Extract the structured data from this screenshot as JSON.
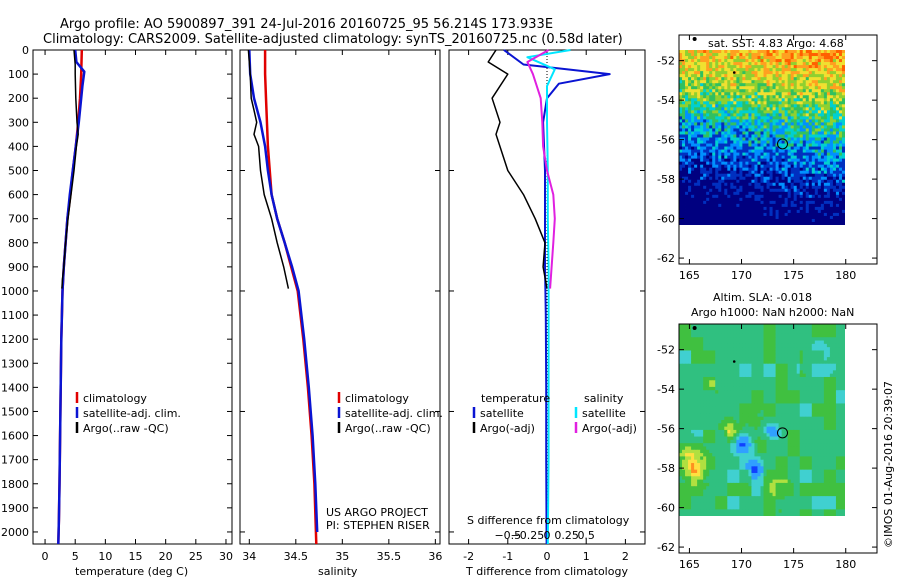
{
  "title": {
    "line1": "Argo profile: AO 5900897_391 24-Jul-2016 20160725_95 56.214S 173.933E",
    "line2": "Climatology: CARS2009. Satellite-adjusted climatology: synTS_20160725.nc (0.58d later)"
  },
  "colors": {
    "climatology": "#e00000",
    "satellite": "#0a14d2",
    "argo": "#000000",
    "satellite_salinity": "#00e6ff",
    "argo_salinity": "#e020e0"
  },
  "legend_profile": {
    "climatology": "climatology",
    "satellite": "satellite-adj. clim.",
    "argo": "Argo(..raw -QC)"
  },
  "legend_diff": {
    "temperature_header": "temperature",
    "salinity_header": "salinity",
    "satellite": "satellite",
    "argo": "Argo(-adj)"
  },
  "project_note": {
    "line1": "US ARGO PROJECT",
    "line2": "PI: STEPHEN RISER"
  },
  "map_sst": {
    "title": "sat. SST: 4.83 Argo: 4.68",
    "xticks": [
      "165",
      "170",
      "175",
      "180"
    ],
    "yticks": [
      "-52",
      "-54",
      "-56",
      "-58",
      "-60",
      "-62"
    ]
  },
  "map_sla": {
    "title_line1": "Altim. SLA: -0.018",
    "title_line2": "Argo h1000: NaN h2000: NaN",
    "xticks": [
      "165",
      "170",
      "175",
      "180"
    ],
    "yticks": [
      "-52",
      "-54",
      "-56",
      "-58",
      "-60",
      "-62"
    ]
  },
  "credit": "©IMOS 01-Aug-2016 20:39:07",
  "chart_data": [
    {
      "type": "line",
      "name": "temperature-profile",
      "xlabel": "temperature (deg C)",
      "ylabel": "",
      "xlim": [
        -2,
        31
      ],
      "ylim": [
        2050,
        0
      ],
      "xticks": [
        0,
        5,
        10,
        15,
        20,
        25,
        30
      ],
      "yticks": [
        0,
        100,
        200,
        300,
        400,
        500,
        600,
        700,
        800,
        900,
        1000,
        1100,
        1200,
        1300,
        1400,
        1500,
        1600,
        1700,
        1800,
        1900,
        2000
      ],
      "series": [
        {
          "name": "climatology",
          "x": [
            6.1,
            6.0,
            5.8,
            5.5,
            5.1,
            4.6,
            4.2,
            3.7,
            3.4,
            3.1,
            2.9,
            2.7,
            2.6,
            2.5,
            2.4,
            2.3,
            2.2
          ],
          "y": [
            0,
            100,
            200,
            300,
            400,
            500,
            600,
            700,
            800,
            900,
            1000,
            1200,
            1400,
            1600,
            1800,
            1950,
            2050
          ]
        },
        {
          "name": "satellite-adj. clim.",
          "x": [
            5.0,
            5.2,
            6.5,
            6.2,
            5.6,
            5.1,
            4.6,
            4.1,
            3.7,
            3.4,
            3.1,
            2.9,
            2.7,
            2.6,
            2.5,
            2.4,
            2.3,
            2.2
          ],
          "y": [
            0,
            50,
            90,
            150,
            300,
            400,
            500,
            600,
            700,
            800,
            900,
            1000,
            1200,
            1400,
            1600,
            1800,
            1950,
            2050
          ]
        },
        {
          "name": "Argo(..raw -QC)",
          "x": [
            4.8,
            5.0,
            5.0,
            5.1,
            5.3,
            5.5,
            5.2,
            4.8,
            4.3,
            3.8,
            3.4,
            3.1,
            2.9,
            2.8
          ],
          "y": [
            0,
            60,
            100,
            200,
            300,
            350,
            400,
            500,
            600,
            700,
            800,
            900,
            950,
            990
          ]
        }
      ]
    },
    {
      "type": "line",
      "name": "salinity-profile",
      "xlabel": "salinity",
      "ylabel": "",
      "xlim": [
        33.9,
        36.05
      ],
      "ylim": [
        2050,
        0
      ],
      "xticks": [
        34,
        34.5,
        35,
        35.5,
        36
      ],
      "xticklabels": [
        "34",
        "34.5",
        "35",
        "35.5",
        "36"
      ],
      "yticks": [
        0,
        500,
        1000,
        1500,
        2000
      ],
      "series": [
        {
          "name": "climatology",
          "x": [
            34.17,
            34.17,
            34.18,
            34.2,
            34.24,
            34.3,
            34.38,
            34.45,
            34.52,
            34.58,
            34.63,
            34.67,
            34.7,
            34.72
          ],
          "y": [
            0,
            100,
            200,
            400,
            600,
            700,
            800,
            900,
            1000,
            1200,
            1400,
            1600,
            1800,
            2050
          ]
        },
        {
          "name": "satellite-adj. clim.",
          "x": [
            34.0,
            34.01,
            34.05,
            34.12,
            34.17,
            34.2,
            34.24,
            34.3,
            34.38,
            34.46,
            34.53,
            34.59,
            34.64,
            34.68,
            34.71,
            34.73
          ],
          "y": [
            0,
            100,
            200,
            300,
            400,
            500,
            600,
            700,
            800,
            900,
            1000,
            1200,
            1400,
            1600,
            1800,
            2000
          ]
        },
        {
          "name": "Argo(..raw -QC)",
          "x": [
            33.99,
            34.01,
            34.02,
            34.05,
            34.08,
            34.05,
            34.1,
            34.12,
            34.16,
            34.2,
            34.24,
            34.3,
            34.37,
            34.42
          ],
          "y": [
            0,
            100,
            200,
            250,
            300,
            350,
            400,
            500,
            600,
            650,
            700,
            800,
            900,
            990
          ]
        }
      ]
    },
    {
      "type": "line",
      "name": "difference-from-climatology",
      "xlabel": "T difference from climatology",
      "xlabel2": "S difference from climatology",
      "ylabel": "",
      "xlim": [
        -2.5,
        2.5
      ],
      "ylim": [
        2050,
        0
      ],
      "xticks": [
        -2,
        -1,
        0,
        1,
        2
      ],
      "xticks2": [
        -0.5,
        -0.25,
        0,
        0.25,
        0.5
      ],
      "xticklabels2": [
        "−0.5",
        "−0.25",
        "0",
        "0.25",
        "0.5"
      ],
      "yticks": [
        0,
        500,
        1000,
        1500,
        2000
      ],
      "series": [
        {
          "name": "satellite (temperature)",
          "x": [
            -1.1,
            -0.6,
            0.5,
            1.6,
            0.3,
            0.0,
            -0.1,
            -0.05,
            -0.05,
            -0.05,
            -0.03,
            -0.02,
            -0.02,
            -0.01
          ],
          "y": [
            0,
            60,
            80,
            100,
            140,
            200,
            300,
            500,
            700,
            900,
            1100,
            1400,
            1700,
            2050
          ]
        },
        {
          "name": "Argo(-adj) (temperature)",
          "x": [
            -1.3,
            -1.5,
            -1.0,
            -1.4,
            -1.2,
            -1.3,
            -1.0,
            -0.6,
            -0.3,
            -0.05,
            -0.1,
            0.0
          ],
          "y": [
            0,
            50,
            100,
            200,
            300,
            350,
            500,
            600,
            700,
            800,
            900,
            990
          ]
        },
        {
          "name": "satellite (salinity)",
          "x": [
            0.3,
            -0.25,
            0.1,
            0.0,
            0.0,
            0.01,
            0.01,
            0.02,
            0.02,
            0.02,
            0.02,
            0.01
          ],
          "y": [
            0,
            30,
            80,
            150,
            300,
            500,
            700,
            900,
            1100,
            1400,
            1700,
            2050
          ]
        },
        {
          "name": "Argo(-adj) (salinity)",
          "x": [
            0.02,
            -0.25,
            -0.18,
            -0.08,
            -0.06,
            -0.05,
            0.0,
            0.08,
            0.1,
            0.08,
            0.04
          ],
          "y": [
            0,
            50,
            100,
            200,
            300,
            400,
            500,
            600,
            700,
            800,
            990
          ]
        }
      ]
    },
    {
      "type": "heatmap",
      "name": "sst-map",
      "title": "sat. SST: 4.83 Argo: 4.68",
      "xlim": [
        164,
        183
      ],
      "ylim": [
        -62.3,
        -50.7
      ],
      "float_position": {
        "lon": 173.933,
        "lat": -56.214
      },
      "track_points": [
        {
          "lon": 165.5,
          "lat": -50.9
        },
        {
          "lon": 169.3,
          "lat": -52.6
        }
      ]
    },
    {
      "type": "heatmap",
      "name": "sla-map",
      "title": "Altim. SLA: -0.018",
      "xlim": [
        164,
        183
      ],
      "ylim": [
        -62.3,
        -50.7
      ],
      "float_position": {
        "lon": 173.933,
        "lat": -56.214
      },
      "track_points": [
        {
          "lon": 165.5,
          "lat": -50.9
        },
        {
          "lon": 169.3,
          "lat": -52.6
        }
      ]
    }
  ]
}
